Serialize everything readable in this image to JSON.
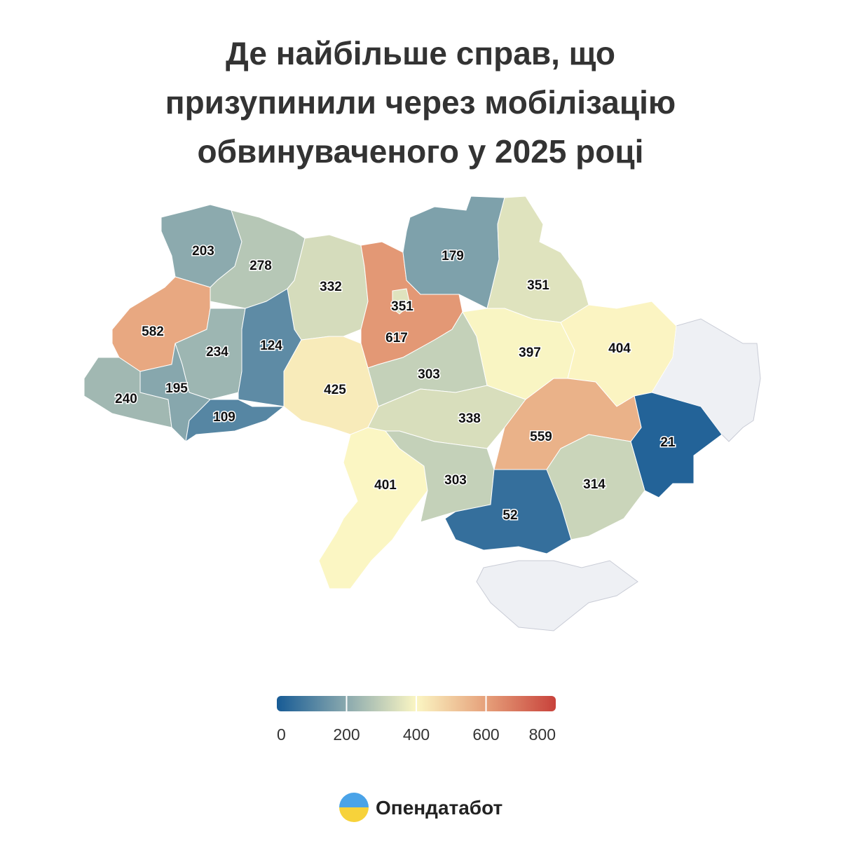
{
  "chart_data": {
    "type": "choropleth",
    "title": [
      "Де найбільше справ, що",
      "призупинили через мобілізацію",
      "обвинуваченого у 2025 році"
    ],
    "values": [
      203,
      278,
      332,
      617,
      351,
      179,
      351,
      582,
      234,
      124,
      240,
      195,
      109,
      425,
      303,
      397,
      404,
      21,
      338,
      559,
      401,
      303,
      314,
      52
    ],
    "colorscale": [
      "#175b95",
      "#8aa9ae",
      "#fbf6c3",
      "#e6a07a",
      "#c8423b"
    ],
    "clim": [
      0,
      800
    ],
    "cticks": [
      0,
      200,
      400,
      600,
      800
    ],
    "source": "Опендатабот"
  }
}
